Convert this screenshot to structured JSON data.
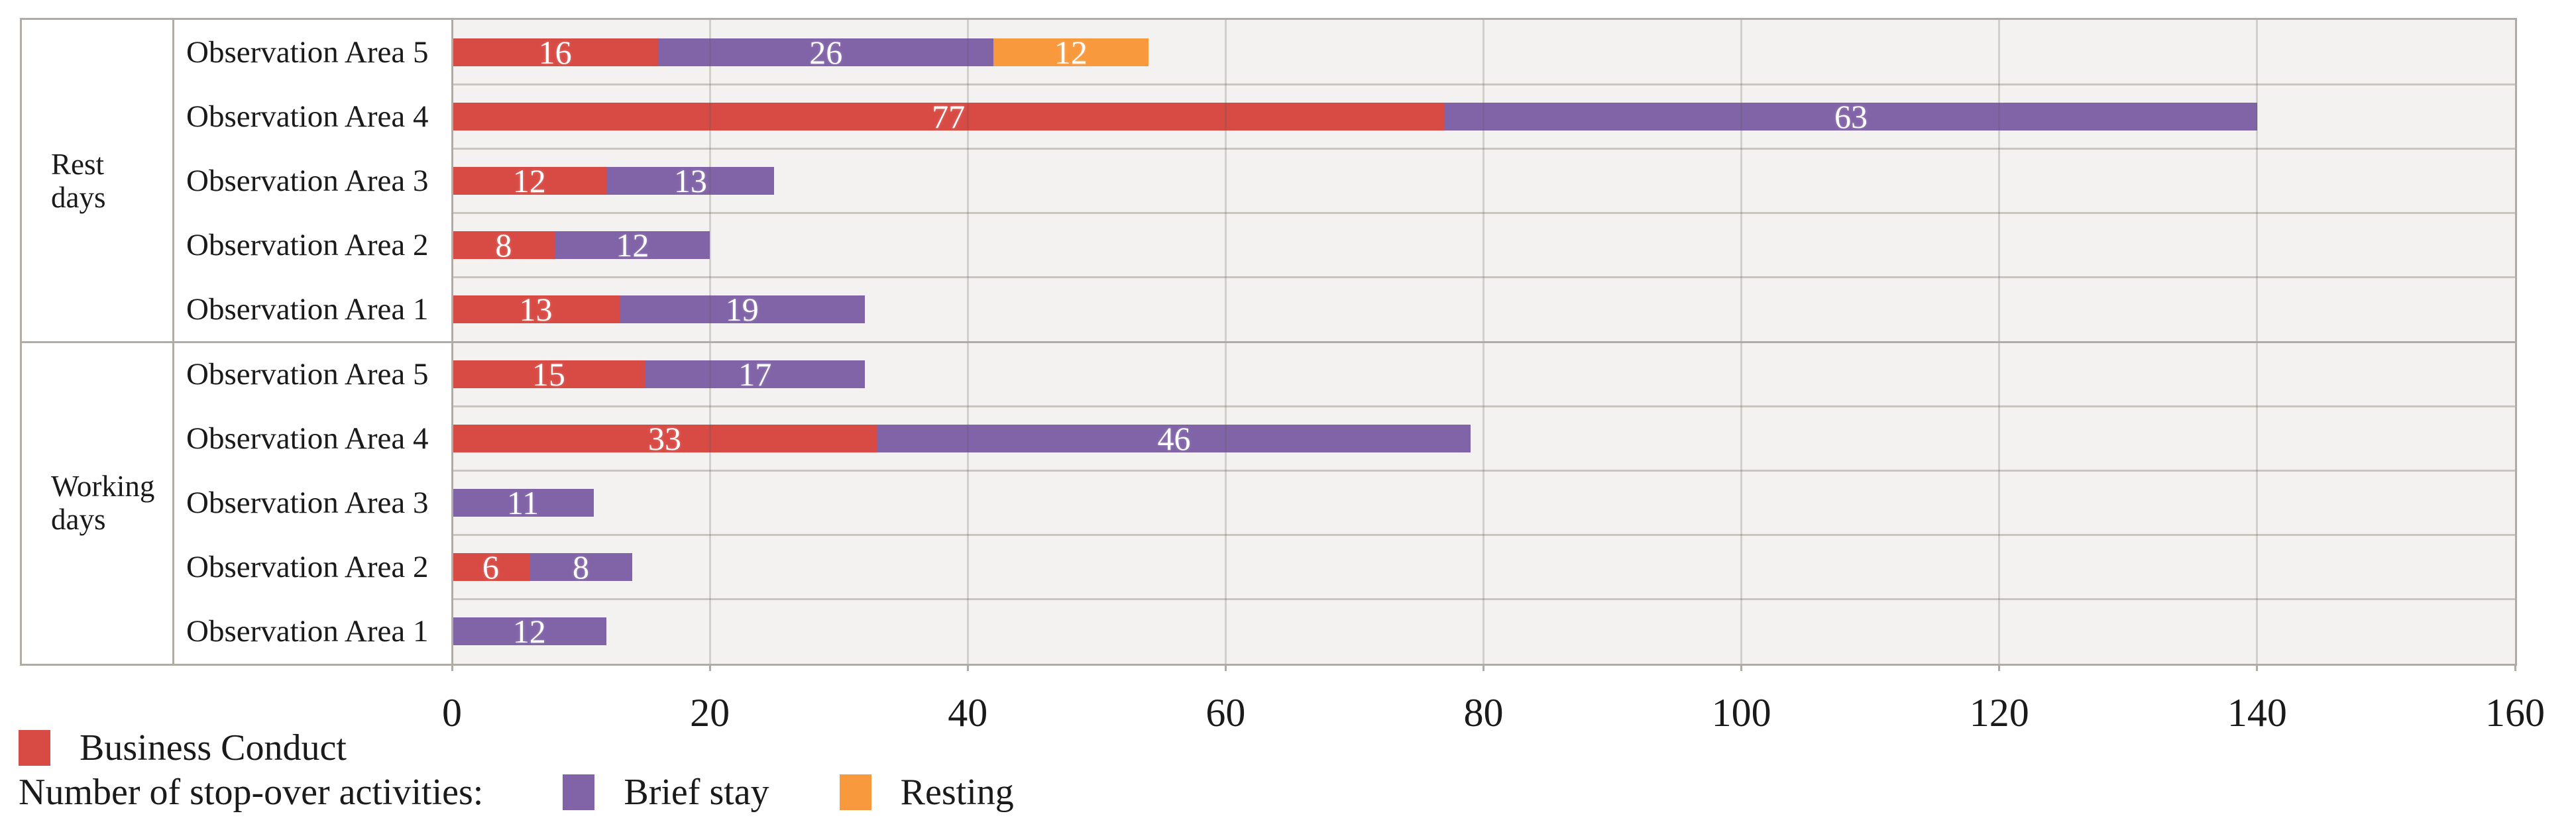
{
  "chart_data": {
    "type": "bar",
    "orientation": "horizontal",
    "stacked": true,
    "title": "",
    "xlabel": "",
    "ylabel": "",
    "xlim": [
      0,
      160
    ],
    "xticks": [
      0,
      20,
      40,
      60,
      80,
      100,
      120,
      140,
      160
    ],
    "grid": "vertical",
    "legend_position": "bottom-left",
    "legend_prefix": "Number of stop-over activities:",
    "series": [
      {
        "name": "Business Conduct",
        "color": "#d84b45"
      },
      {
        "name": "Brief stay",
        "color": "#8164a8"
      },
      {
        "name": "Resting",
        "color": "#f8993d"
      }
    ],
    "groups": [
      {
        "label": "Rest days",
        "rows": [
          {
            "category": "Observation Area 5",
            "segments": [
              16,
              26,
              12
            ]
          },
          {
            "category": "Observation Area 4",
            "segments": [
              77,
              63,
              0
            ]
          },
          {
            "category": "Observation Area 3",
            "segments": [
              12,
              13,
              0
            ]
          },
          {
            "category": "Observation Area 2",
            "segments": [
              8,
              12,
              0
            ]
          },
          {
            "category": "Observation Area 1",
            "segments": [
              13,
              19,
              0
            ]
          }
        ]
      },
      {
        "label": "Working days",
        "rows": [
          {
            "category": "Observation Area 5",
            "segments": [
              15,
              17,
              0
            ]
          },
          {
            "category": "Observation Area 4",
            "segments": [
              33,
              46,
              0
            ]
          },
          {
            "category": "Observation Area 3",
            "segments": [
              0,
              11,
              0
            ]
          },
          {
            "category": "Observation Area 2",
            "segments": [
              6,
              8,
              0
            ]
          },
          {
            "category": "Observation Area 1",
            "segments": [
              0,
              12,
              0
            ]
          }
        ]
      }
    ]
  },
  "colors": {
    "plot_background": "#f3f2f0",
    "border": "#b0aba3",
    "row_separator": "#c9c5bf",
    "gridline": "rgba(92,86,76,0.22)",
    "bar_value_text": "#ffffff",
    "text": "#1a1a1a"
  }
}
